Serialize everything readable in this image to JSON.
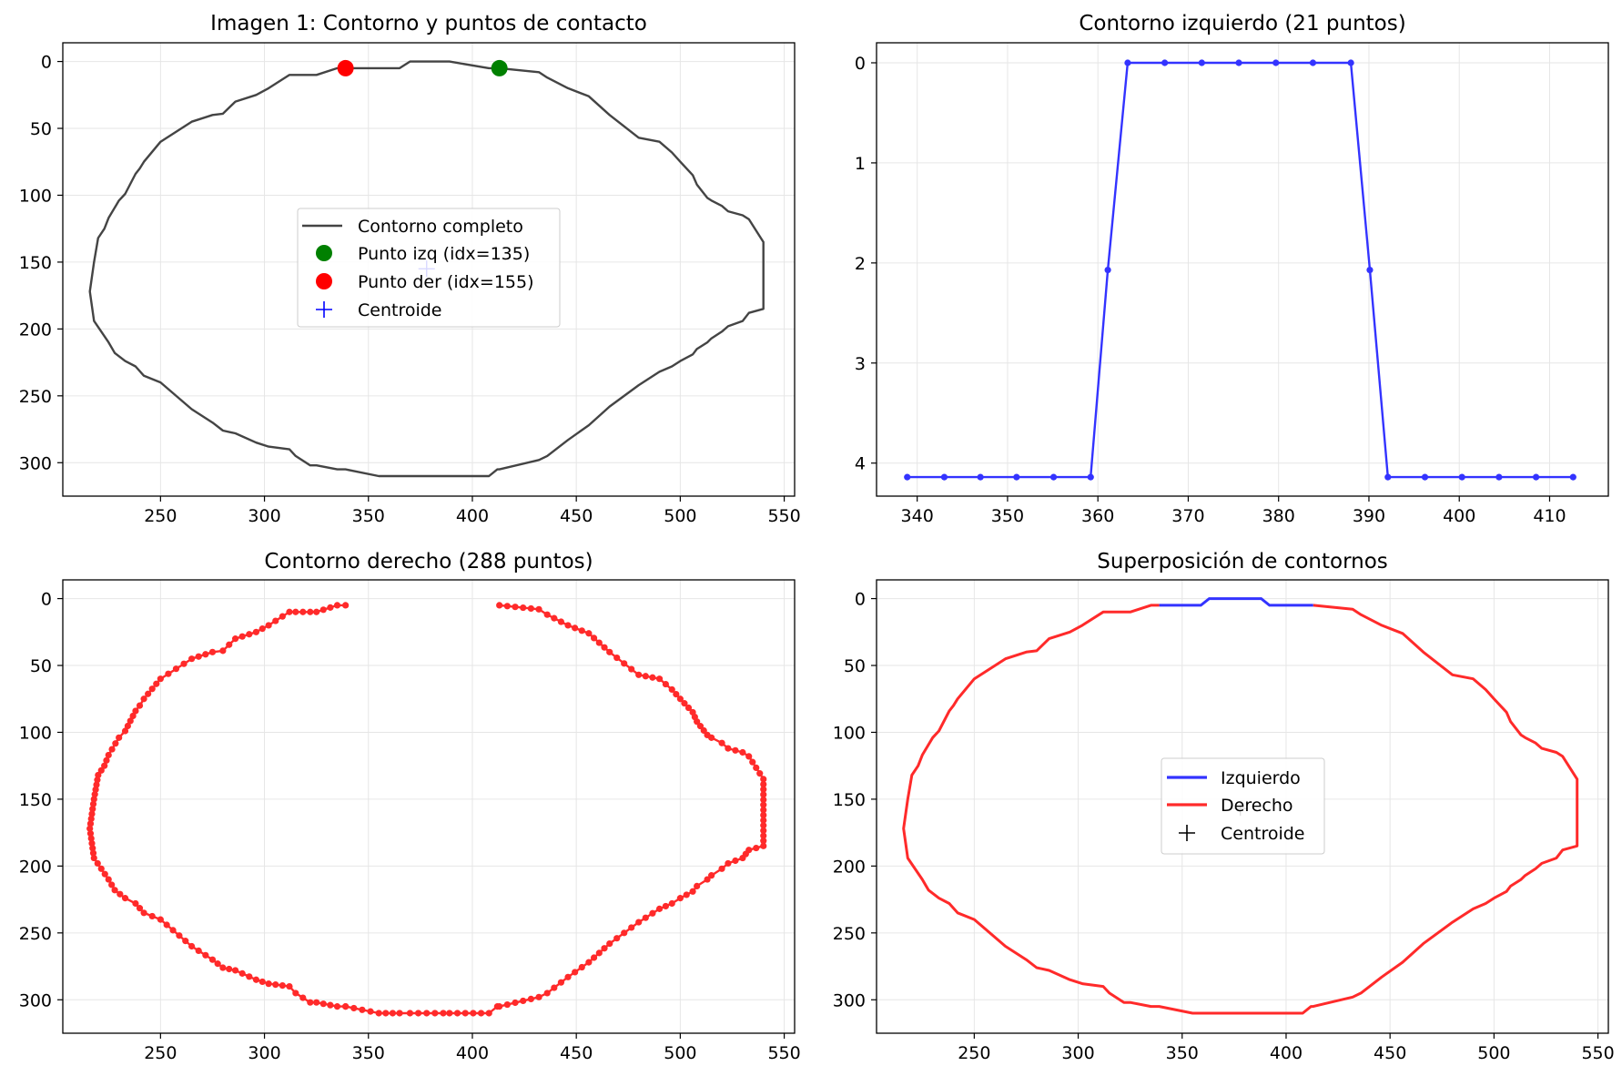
{
  "colors": {
    "contour": "#444444",
    "left_contour": "#3333ff",
    "right_contour": "#ff2a2a",
    "point_left": "#008000",
    "point_right": "#ff0000",
    "centroid_1": "#0000ff",
    "centroid_4": "#000000",
    "grid": "#e6e6e6"
  },
  "chart_data": [
    {
      "type": "line",
      "title": "Imagen 1: Contorno y puntos de contacto",
      "xlim": [
        203,
        555
      ],
      "ylim": [
        325,
        -14
      ],
      "y_inverted": true,
      "xticks": [
        250,
        300,
        350,
        400,
        450,
        500,
        550
      ],
      "yticks": [
        0,
        50,
        100,
        150,
        200,
        250,
        300
      ],
      "grid": true,
      "legend_position": "center",
      "legend": [
        "Contorno completo",
        "Punto izq (idx=135)",
        "Punto der (idx=155)",
        "Centroide"
      ],
      "series": [
        {
          "name": "Contorno completo",
          "closed": true,
          "x": [
            339,
            355,
            365,
            370,
            386,
            389,
            408,
            412,
            413,
            432,
            436,
            446,
            456,
            466,
            480,
            490,
            496,
            500,
            506,
            508,
            513,
            515,
            520,
            523,
            530,
            533,
            540,
            540,
            533,
            530,
            523,
            520,
            515,
            513,
            508,
            506,
            500,
            496,
            490,
            480,
            466,
            456,
            446,
            436,
            432,
            413,
            412,
            408,
            389,
            386,
            370,
            365,
            355,
            339,
            339,
            335,
            325,
            322,
            315,
            312,
            302,
            296,
            286,
            280,
            275,
            265,
            250,
            242,
            238,
            233,
            228,
            225,
            218,
            216,
            218,
            220,
            223,
            225,
            230,
            233,
            238,
            240,
            242,
            250,
            265,
            275,
            280,
            286,
            296,
            302,
            312,
            315,
            322,
            325,
            335,
            339
          ],
          "y": [
            5,
            5,
            5,
            0,
            0,
            0,
            5,
            5,
            5,
            8,
            12,
            20,
            26,
            40,
            57,
            60,
            68,
            75,
            85,
            92,
            102,
            104,
            108,
            112,
            115,
            118,
            135,
            185,
            188,
            194,
            198,
            202,
            207,
            210,
            215,
            219,
            224,
            228,
            232,
            242,
            258,
            272,
            283,
            295,
            298,
            305,
            305,
            310,
            310,
            310,
            310,
            310,
            310,
            305,
            305,
            305,
            302,
            302,
            295,
            290,
            288,
            285,
            278,
            276,
            270,
            260,
            240,
            235,
            228,
            224,
            218,
            210,
            194,
            172,
            150,
            132,
            125,
            117,
            104,
            99,
            84,
            80,
            75,
            60,
            45,
            40,
            39,
            30,
            25,
            20,
            10,
            10,
            10,
            10,
            5,
            5
          ]
        },
        {
          "name": "Punto izq (idx=135)",
          "x": [
            413
          ],
          "y": [
            5
          ]
        },
        {
          "name": "Punto der (idx=155)",
          "x": [
            339
          ],
          "y": [
            5
          ]
        },
        {
          "name": "Centroide",
          "x": [
            378
          ],
          "y": [
            155
          ]
        }
      ]
    },
    {
      "type": "line",
      "title": "Contorno izquierdo (21 puntos)",
      "xlim": [
        335.5,
        416.5
      ],
      "ylim": [
        4.33,
        -0.2
      ],
      "y_inverted": true,
      "xticks": [
        340,
        350,
        360,
        370,
        380,
        390,
        400,
        410
      ],
      "yticks": [
        0,
        1,
        2,
        3,
        4
      ],
      "grid": true,
      "series": [
        {
          "name": "",
          "x": [
            338.9,
            343,
            347,
            351,
            355.1,
            359.2,
            361.1,
            363.3,
            367.4,
            371.5,
            375.6,
            379.7,
            383.8,
            388,
            390.1,
            392.1,
            396.2,
            400.3,
            404.4,
            408.5,
            412.6
          ],
          "y": [
            4.14,
            4.14,
            4.14,
            4.14,
            4.14,
            4.14,
            2.07,
            0,
            0,
            0,
            0,
            0,
            0,
            0,
            2.07,
            4.14,
            4.14,
            4.14,
            4.14,
            4.14,
            4.14
          ]
        }
      ]
    },
    {
      "type": "scatter",
      "title": "Contorno derecho (288 puntos)",
      "xlim": [
        203,
        555
      ],
      "ylim": [
        325,
        -14
      ],
      "y_inverted": true,
      "xticks": [
        250,
        300,
        350,
        400,
        450,
        500,
        550
      ],
      "yticks": [
        0,
        50,
        100,
        150,
        200,
        250,
        300
      ],
      "grid": true,
      "series": [
        {
          "name": "",
          "marker_line": true,
          "x": [
            413,
            432,
            436,
            446,
            456,
            466,
            480,
            490,
            496,
            500,
            506,
            508,
            513,
            515,
            520,
            523,
            530,
            533,
            540,
            540,
            533,
            530,
            523,
            520,
            515,
            513,
            508,
            506,
            500,
            496,
            490,
            480,
            466,
            456,
            446,
            436,
            432,
            413,
            412,
            408,
            389,
            386,
            370,
            365,
            355,
            339,
            339,
            335,
            325,
            322,
            315,
            312,
            302,
            296,
            286,
            280,
            275,
            265,
            250,
            242,
            238,
            233,
            228,
            225,
            218,
            216,
            218,
            220,
            223,
            225,
            230,
            233,
            238,
            240,
            242,
            250,
            265,
            275,
            280,
            286,
            296,
            302,
            312,
            315,
            322,
            325,
            335,
            339
          ],
          "y": [
            5,
            8,
            12,
            20,
            26,
            40,
            57,
            60,
            68,
            75,
            85,
            92,
            102,
            104,
            108,
            112,
            115,
            118,
            135,
            185,
            188,
            194,
            198,
            202,
            207,
            210,
            215,
            219,
            224,
            228,
            232,
            242,
            258,
            272,
            283,
            295,
            298,
            305,
            305,
            310,
            310,
            310,
            310,
            310,
            310,
            305,
            305,
            305,
            302,
            302,
            295,
            290,
            288,
            285,
            278,
            276,
            270,
            260,
            240,
            235,
            228,
            224,
            218,
            210,
            194,
            172,
            150,
            132,
            125,
            117,
            104,
            99,
            84,
            80,
            75,
            60,
            45,
            40,
            39,
            30,
            25,
            20,
            10,
            10,
            10,
            10,
            5,
            5
          ]
        }
      ]
    },
    {
      "type": "line",
      "title": "Superposición de contornos",
      "xlim": [
        203,
        555
      ],
      "ylim": [
        325,
        -14
      ],
      "y_inverted": true,
      "xticks": [
        250,
        300,
        350,
        400,
        450,
        500,
        550
      ],
      "yticks": [
        0,
        50,
        100,
        150,
        200,
        250,
        300
      ],
      "grid": true,
      "legend_position": "center",
      "legend": [
        "Izquierdo",
        "Derecho",
        "Centroide"
      ],
      "series": [
        {
          "name": "Izquierdo",
          "x": [
            339,
            355,
            359,
            363,
            388,
            392,
            413
          ],
          "y": [
            5,
            5,
            5,
            0,
            0,
            5,
            5
          ]
        },
        {
          "name": "Derecho",
          "x": [
            413,
            432,
            436,
            446,
            456,
            466,
            480,
            490,
            496,
            500,
            506,
            508,
            513,
            515,
            520,
            523,
            530,
            533,
            540,
            540,
            533,
            530,
            523,
            520,
            515,
            513,
            508,
            506,
            500,
            496,
            490,
            480,
            466,
            456,
            446,
            436,
            432,
            413,
            412,
            408,
            389,
            386,
            370,
            365,
            355,
            339,
            339,
            335,
            325,
            322,
            315,
            312,
            302,
            296,
            286,
            280,
            275,
            265,
            250,
            242,
            238,
            233,
            228,
            225,
            218,
            216,
            218,
            220,
            223,
            225,
            230,
            233,
            238,
            240,
            242,
            250,
            265,
            275,
            280,
            286,
            296,
            302,
            312,
            315,
            322,
            325,
            335,
            339
          ],
          "y": [
            5,
            8,
            12,
            20,
            26,
            40,
            57,
            60,
            68,
            75,
            85,
            92,
            102,
            104,
            108,
            112,
            115,
            118,
            135,
            185,
            188,
            194,
            198,
            202,
            207,
            210,
            215,
            219,
            224,
            228,
            232,
            242,
            258,
            272,
            283,
            295,
            298,
            305,
            305,
            310,
            310,
            310,
            310,
            310,
            310,
            305,
            305,
            305,
            302,
            302,
            295,
            290,
            288,
            285,
            278,
            276,
            270,
            260,
            240,
            235,
            228,
            224,
            218,
            210,
            194,
            172,
            150,
            132,
            125,
            117,
            104,
            99,
            84,
            80,
            75,
            60,
            45,
            40,
            39,
            30,
            25,
            20,
            10,
            10,
            10,
            10,
            5,
            5
          ]
        },
        {
          "name": "Centroide",
          "x": [
            378
          ],
          "y": [
            157
          ]
        }
      ]
    }
  ]
}
